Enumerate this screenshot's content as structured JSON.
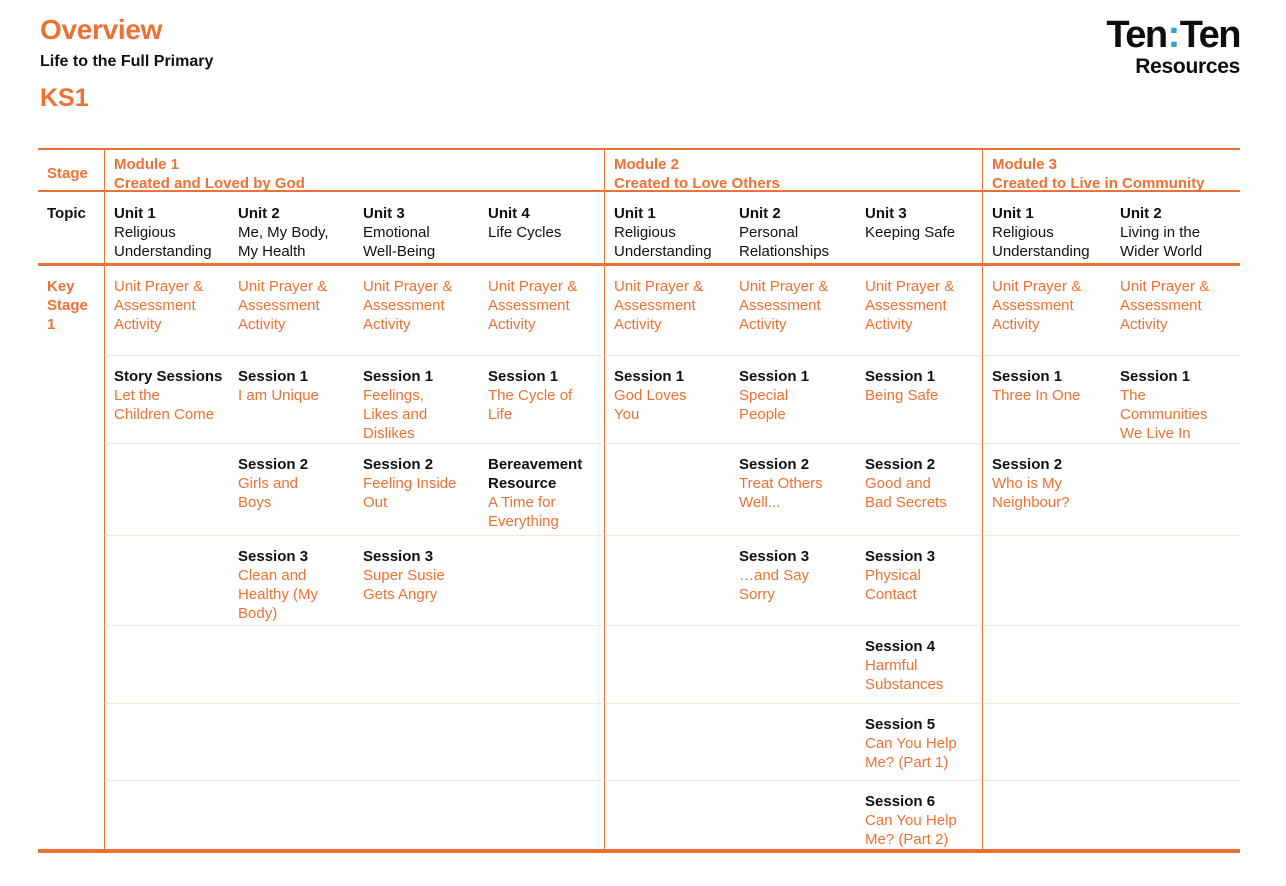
{
  "header": {
    "title": "Overview",
    "subtitle": "Life to the Full Primary",
    "key_stage": "KS1"
  },
  "logo": {
    "word_first": "Ten",
    "colon": ":",
    "word_second": "Ten",
    "tagline": "Resources",
    "colon_color": "#3BA0D6"
  },
  "colors": {
    "accent_orange": "#ED7133",
    "row_divider_light": "#FAE6D6"
  },
  "table": {
    "stage_header": "Stage",
    "topic_header": "Topic",
    "key_stage_label": "Key\nStage\n1",
    "prayer_label": "Unit Prayer &\nAssessment\nActivity",
    "modules": [
      {
        "name": "Module 1",
        "theme": "Created and Loved by God",
        "units": [
          {
            "title": "Unit 1",
            "subtitle": "Religious\nUnderstanding",
            "rows": [
              {
                "label": "Story Sessions",
                "title": "Let the\nChildren Come"
              },
              null,
              null,
              null,
              null,
              null
            ]
          },
          {
            "title": "Unit 2",
            "subtitle": "Me, My Body,\nMy Health",
            "rows": [
              {
                "label": "Session 1",
                "title": "I am Unique"
              },
              {
                "label": "Session 2",
                "title": "Girls and\nBoys"
              },
              {
                "label": "Session 3",
                "title": "Clean and\nHealthy (My\nBody)"
              },
              null,
              null,
              null
            ]
          },
          {
            "title": "Unit 3",
            "subtitle": "Emotional\nWell-Being",
            "rows": [
              {
                "label": "Session 1",
                "title": "Feelings,\nLikes and\nDislikes"
              },
              {
                "label": "Session 2",
                "title": "Feeling Inside\nOut"
              },
              {
                "label": "Session 3",
                "title": "Super Susie\nGets Angry"
              },
              null,
              null,
              null
            ]
          },
          {
            "title": "Unit 4",
            "subtitle": "Life Cycles",
            "rows": [
              {
                "label": "Session 1",
                "title": "The Cycle of\nLife"
              },
              {
                "label": "Bereavement\nResource",
                "title": "A Time for\nEverything"
              },
              null,
              null,
              null,
              null
            ]
          }
        ]
      },
      {
        "name": "Module 2",
        "theme": "Created to Love Others",
        "units": [
          {
            "title": "Unit 1",
            "subtitle": "Religious\nUnderstanding",
            "rows": [
              {
                "label": "Session 1",
                "title": "God Loves\nYou"
              },
              null,
              null,
              null,
              null,
              null
            ]
          },
          {
            "title": "Unit 2",
            "subtitle": "Personal\nRelationships",
            "rows": [
              {
                "label": "Session 1",
                "title": "Special\nPeople"
              },
              {
                "label": "Session 2",
                "title": "Treat Others\nWell..."
              },
              {
                "label": "Session 3",
                "title": "…and Say\nSorry"
              },
              null,
              null,
              null
            ]
          },
          {
            "title": "Unit 3",
            "subtitle": "Keeping Safe",
            "rows": [
              {
                "label": "Session 1",
                "title": "Being Safe"
              },
              {
                "label": "Session 2",
                "title": "Good and\nBad Secrets"
              },
              {
                "label": "Session 3",
                "title": "Physical\nContact"
              },
              {
                "label": "Session 4",
                "title": "Harmful\nSubstances"
              },
              {
                "label": "Session 5",
                "title": "Can You Help\nMe? (Part 1)"
              },
              {
                "label": "Session 6",
                "title": "Can You Help\nMe? (Part 2)"
              }
            ]
          }
        ]
      },
      {
        "name": "Module 3",
        "theme": "Created to Live in Community",
        "units": [
          {
            "title": "Unit 1",
            "subtitle": "Religious\nUnderstanding",
            "rows": [
              {
                "label": "Session 1",
                "title": "Three In One"
              },
              {
                "label": "Session 2",
                "title": "Who is My\nNeighbour?"
              },
              null,
              null,
              null,
              null
            ]
          },
          {
            "title": "Unit 2",
            "subtitle": "Living in the\nWider World",
            "rows": [
              {
                "label": "Session 1",
                "title": "The\nCommunities\nWe Live In"
              },
              null,
              null,
              null,
              null,
              null
            ]
          }
        ]
      }
    ]
  }
}
